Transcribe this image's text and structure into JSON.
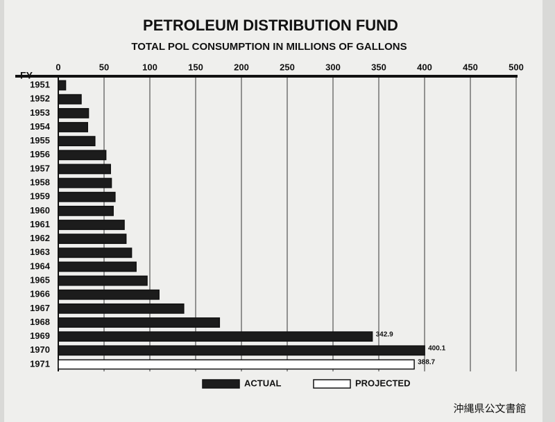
{
  "chart_data": {
    "type": "bar",
    "orientation": "horizontal",
    "title": "PETROLEUM DISTRIBUTION FUND",
    "subtitle": "TOTAL POL CONSUMPTION IN MILLIONS OF GALLONS",
    "y_label": "FY",
    "categories": [
      "1951",
      "1952",
      "1953",
      "1954",
      "1955",
      "1956",
      "1957",
      "1958",
      "1959",
      "1960",
      "1961",
      "1962",
      "1963",
      "1964",
      "1965",
      "1966",
      "1967",
      "1968",
      "1969",
      "1970",
      "1971"
    ],
    "series": [
      {
        "name": "ACTUAL",
        "color": "#1c1c1c",
        "values": [
          8,
          25,
          33,
          32,
          40,
          52,
          57,
          58,
          62,
          60,
          72,
          74,
          80,
          85,
          97,
          110,
          137,
          176,
          342.9,
          400.1,
          null
        ],
        "value_labels": [
          null,
          null,
          null,
          null,
          null,
          null,
          null,
          null,
          null,
          null,
          null,
          null,
          null,
          null,
          null,
          null,
          null,
          null,
          "342.9",
          "400.1",
          null
        ]
      },
      {
        "name": "PROJECTED",
        "color": "#ffffff",
        "values": [
          null,
          null,
          null,
          null,
          null,
          null,
          null,
          null,
          null,
          null,
          null,
          null,
          null,
          null,
          null,
          null,
          null,
          null,
          null,
          null,
          388.7
        ],
        "value_labels": [
          null,
          null,
          null,
          null,
          null,
          null,
          null,
          null,
          null,
          null,
          null,
          null,
          null,
          null,
          null,
          null,
          null,
          null,
          null,
          null,
          "388.7"
        ]
      }
    ],
    "xlim": [
      0,
      500
    ],
    "xticks": [
      0,
      50,
      100,
      150,
      200,
      250,
      300,
      350,
      400,
      450,
      500
    ],
    "grid": true,
    "legend": "bottom"
  },
  "watermark": "沖縄県公文書館"
}
